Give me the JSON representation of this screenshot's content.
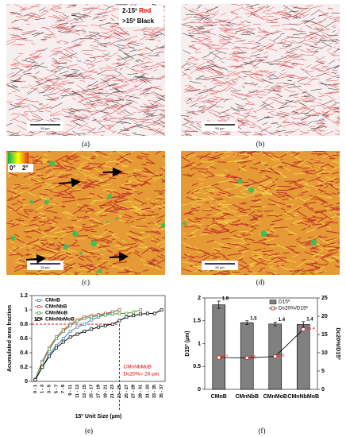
{
  "panels": [
    {
      "label": "(a)",
      "scale_bar": "50 µm",
      "legend": [
        {
          "range": "2-15º",
          "color_word": "Red"
        },
        {
          "range": ">15º",
          "color_word": "Black"
        }
      ]
    },
    {
      "label": "(b)",
      "scale_bar": "50 µm"
    },
    {
      "label": "(c)",
      "scale_bar": "50 µm",
      "colorbar": [
        "0°",
        "2°"
      ]
    },
    {
      "label": "(d)",
      "scale_bar": "50 µm"
    }
  ],
  "chart_data": [
    {
      "type": "line",
      "label": "(e)",
      "xlabel": "15º Unit Size (µm)",
      "ylabel": "Acumulated area fraction",
      "categories": [
        "0 - 1",
        "1 - 3",
        "3 - 5",
        "5 - 7",
        "7 - 9",
        "9 - 11",
        "11 - 13",
        "13 - 15",
        "15 - 17",
        "17 - 19",
        "19 - 21",
        "21 - 23",
        "23 - 25",
        "25 - 27",
        "27 - 29",
        "29 - 31",
        "31 - 33",
        "33 - 35",
        "35 - 37"
      ],
      "series": [
        {
          "name": "CMnB",
          "color": "#4f81bd",
          "values": [
            0.02,
            0.2,
            0.38,
            0.5,
            0.6,
            0.7,
            0.76,
            0.8,
            0.86,
            0.9,
            0.93,
            0.97,
            1.0,
            null,
            null,
            null,
            null,
            null,
            null
          ]
        },
        {
          "name": "CMnNbB",
          "color": "#c0504d",
          "values": [
            0.03,
            0.28,
            0.47,
            0.62,
            0.72,
            0.8,
            0.86,
            0.9,
            0.92,
            0.93,
            0.95,
            0.97,
            1.0,
            null,
            null,
            null,
            null,
            null,
            null
          ]
        },
        {
          "name": "CMnMoB",
          "color": "#4e9a3c",
          "values": [
            0.03,
            0.26,
            0.45,
            0.6,
            0.7,
            0.78,
            0.84,
            0.88,
            0.9,
            0.92,
            0.93,
            0.94,
            0.95,
            0.95,
            0.97,
            1.0,
            null,
            null,
            null
          ]
        },
        {
          "name": "CMnNbMoB",
          "color": "#000000",
          "values": [
            0.02,
            0.2,
            0.35,
            0.47,
            0.55,
            0.62,
            0.66,
            0.7,
            0.73,
            0.76,
            0.78,
            0.8,
            0.85,
            0.9,
            0.92,
            0.94,
            0.95,
            0.95,
            1.0
          ]
        }
      ],
      "ylim": [
        0,
        1.2
      ],
      "yticks": [
        0,
        0.2,
        0.4,
        0.6,
        0.8,
        1,
        1.2
      ],
      "legend": "upper left",
      "reference": {
        "y": 0.8,
        "category": "23 - 25",
        "color": "#e00000"
      },
      "annotations": [
        "15º",
        "CMnNbMoB",
        "Dc20%= 24 µm"
      ]
    },
    {
      "type": "bar_line",
      "label": "(f)",
      "ylabel": "D15º (µm)",
      "y2label": "Dc20%/D15º",
      "categories": [
        "CMnB",
        "CMnNbB",
        "CMnMoB",
        "CMnNbMoB"
      ],
      "series": [
        {
          "name": "D15º",
          "color": "#808080",
          "values": [
            1.85,
            1.46,
            1.43,
            1.42
          ],
          "errors": [
            0.08,
            0.04,
            0.04,
            0.06
          ],
          "value_labels": [
            "1.9",
            "1.5",
            "1.4",
            "1.4"
          ]
        },
        {
          "name": "Dc20%/D15º",
          "color": "#d62728",
          "axis": "y2",
          "values": [
            8.7,
            8.6,
            9.0,
            16.4
          ],
          "value_labels": [
            "8.7",
            "8.6",
            "9.0",
            "16.4"
          ]
        }
      ],
      "ylim": [
        0,
        2
      ],
      "yticks": [
        0,
        0.5,
        1,
        1.5,
        2
      ],
      "y2lim": [
        0,
        25
      ],
      "y2ticks": [
        0,
        5,
        10,
        15,
        20,
        25
      ],
      "legend": "upper right"
    }
  ]
}
